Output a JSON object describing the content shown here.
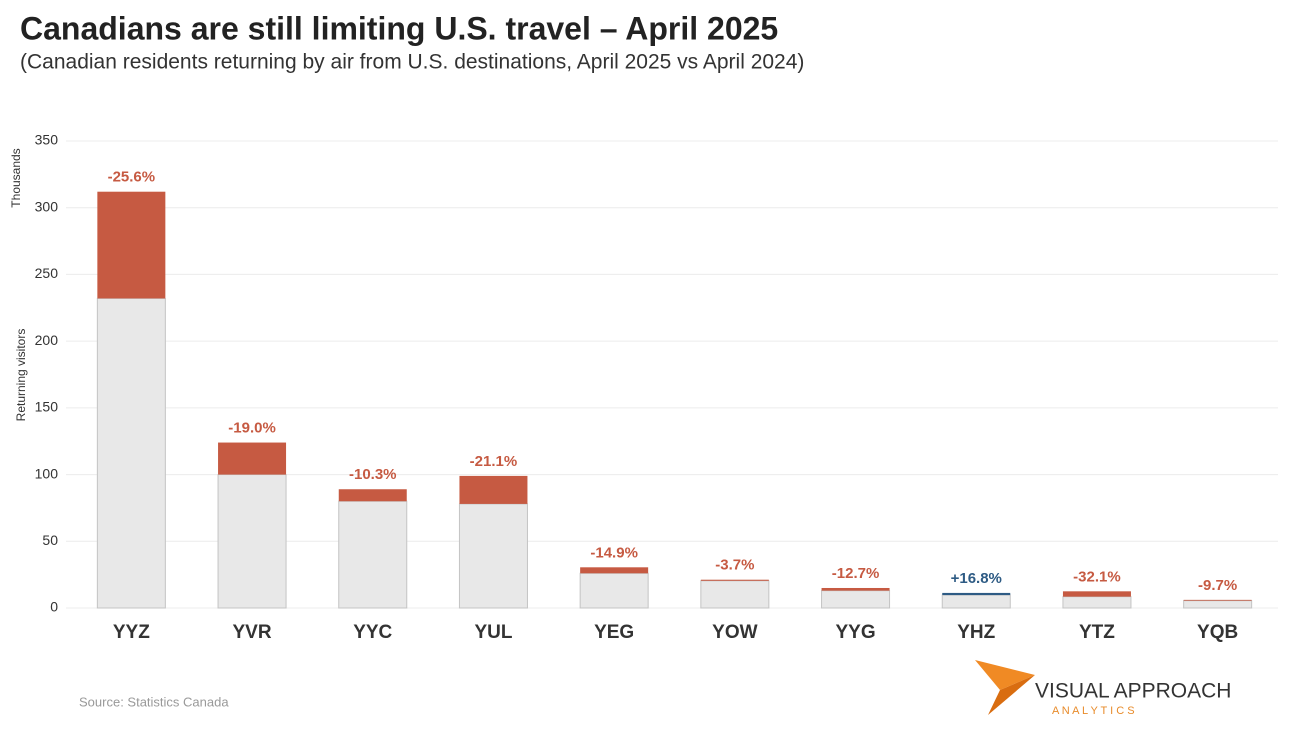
{
  "chart_data": {
    "type": "stacked_bar",
    "title": "Canadians are still limiting U.S. travel – April 2025",
    "subtitle": "(Canadian residents returning by air from U.S. destinations, April 2025 vs April 2024)",
    "y_unit_label": "Thousands",
    "y_label": "Returning visitors",
    "source": "Source: Statistics Canada",
    "categories": [
      "YYZ",
      "YVR",
      "YYC",
      "YUL",
      "YEG",
      "YOW",
      "YYG",
      "YHZ",
      "YTZ",
      "YQB"
    ],
    "series": [
      {
        "color": "#e8e8e8",
        "values": [
          232,
          100,
          80,
          78,
          26,
          20.4,
          13,
          9.7,
          8.5,
          5.5
        ]
      },
      {
        "color": "#c65a42",
        "values": [
          80,
          24,
          9,
          21,
          4.5,
          0.8,
          2,
          null,
          4,
          0.6
        ]
      },
      {
        "color": "#2e5b84",
        "values": [
          null,
          null,
          null,
          null,
          null,
          null,
          null,
          1.6,
          null,
          null
        ]
      }
    ],
    "pct_change": {
      "values": [
        -25.6,
        -19.0,
        -10.3,
        -21.1,
        -14.9,
        -3.7,
        -12.7,
        16.8,
        -32.1,
        -9.7
      ],
      "value_labels": [
        "-25.6%",
        "-19.0%",
        "-10.3%",
        "-21.1%",
        "-14.9%",
        "-3.7%",
        "-12.7%",
        "+16.8%",
        "-32.1%",
        "-9.7%"
      ]
    },
    "ylim": [
      0,
      350
    ],
    "yticks": [
      0,
      50,
      100,
      150,
      200,
      250,
      300,
      350
    ],
    "grid": true
  },
  "branding": {
    "name": "VISUAL APPROACH",
    "tagline": "A N A L Y T I C S"
  }
}
